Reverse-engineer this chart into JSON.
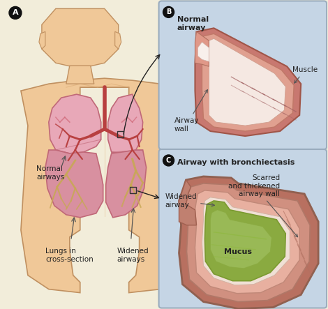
{
  "bg_color": "#f2edda",
  "panel_B_bg": "#c5d5e5",
  "panel_C_bg": "#c5d5e5",
  "panel_B_border": "#9aacbe",
  "skin_color": "#f0c898",
  "skin_shadow": "#d9a870",
  "skin_dark": "#c09060",
  "lung_upper_pink": "#e8a8b8",
  "lung_lower_pink": "#d890a0",
  "lung_edge": "#c06878",
  "bronchi_color": "#b84040",
  "mucus_gold": "#c8a855",
  "airway_normal_outer": "#c87878",
  "airway_normal_mid": "#d89898",
  "airway_normal_inner": "#f0c0b0",
  "airway_normal_lumen": "#f8eeee",
  "airway_b_outer": "#c07060",
  "airway_b_mid": "#d89080",
  "airway_b_inner": "#edb8a0",
  "airway_b_lumen": "#f0e0d8",
  "mucus_green_dark": "#7a9a30",
  "mucus_green_main": "#8aaa40",
  "mucus_green_light": "#a0c060",
  "text_dark": "#222222",
  "text_gray": "#444444",
  "arrow_color": "#555555",
  "label_A": "A",
  "label_B": "B",
  "label_C": "C",
  "title_B": "Normal\nairway",
  "title_C": "Airway with bronchiectasis",
  "lbl_normal_airways": "Normal\nairways",
  "lbl_lungs": "Lungs in\ncross-section",
  "lbl_widened": "Widened\nairways",
  "lbl_muscle": "Muscle",
  "lbl_airway_wall": "Airway\nwall",
  "lbl_widened_airway": "Widened\nairway",
  "lbl_scarred": "Scarred\nand thickened\nairway wall",
  "lbl_mucus": "Mucus"
}
